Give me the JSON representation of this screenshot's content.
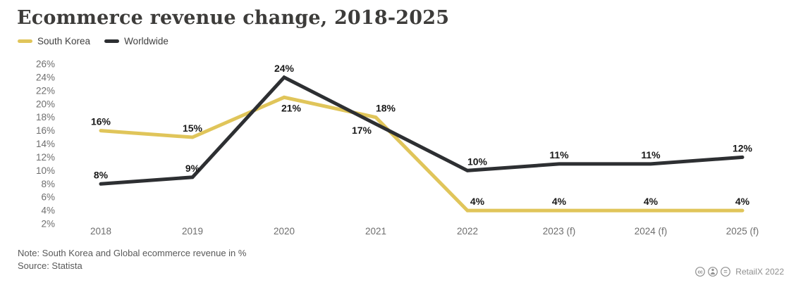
{
  "title": "Ecommerce revenue change, 2018-2025",
  "legend": {
    "items": [
      {
        "label": "South Korea",
        "color": "#e0c55a"
      },
      {
        "label": "Worldwide",
        "color": "#2d2f32"
      }
    ]
  },
  "footer": {
    "note": "Note: South Korea and Global ecommerce revenue in %",
    "source": "Source: Statista",
    "credit": "RetailX 2022",
    "license_icons": [
      "cc",
      "by",
      "nd"
    ]
  },
  "colors": {
    "south_korea_line": "#e0c55a",
    "worldwide_line": "#2d2f32",
    "axis_text": "#6e6e6e",
    "data_label_text": "#1a1a1a",
    "title_text": "#3d3c3a",
    "footer_text": "#595959",
    "credit_text": "#8f8f8f"
  },
  "chart_data": {
    "type": "line",
    "title": "Ecommerce revenue change, 2018-2025",
    "categories": [
      "2018",
      "2019",
      "2020",
      "2021",
      "2022",
      "2023 (f)",
      "2024 (f)",
      "2025 (f)"
    ],
    "series": [
      {
        "name": "South Korea",
        "color": "#e0c55a",
        "values": [
          16,
          15,
          21,
          18,
          4,
          4,
          4,
          4
        ],
        "label_placement": [
          "above",
          "above",
          "below-right",
          "above-right",
          "above-right",
          "above",
          "above",
          "above"
        ]
      },
      {
        "name": "Worldwide",
        "color": "#2d2f32",
        "values": [
          8,
          9,
          24,
          17,
          10,
          11,
          11,
          12
        ],
        "label_placement": [
          "above",
          "above",
          "above",
          "below-left",
          "above-right",
          "above",
          "above",
          "above"
        ]
      }
    ],
    "y_ticks": [
      26,
      24,
      22,
      20,
      18,
      16,
      14,
      12,
      10,
      8,
      6,
      4,
      2
    ],
    "y_tick_suffix": "%",
    "label_format": "percent",
    "ylim": [
      2,
      26
    ],
    "grid": false,
    "legend_position": "top-left",
    "xlabel": "",
    "ylabel": ""
  }
}
